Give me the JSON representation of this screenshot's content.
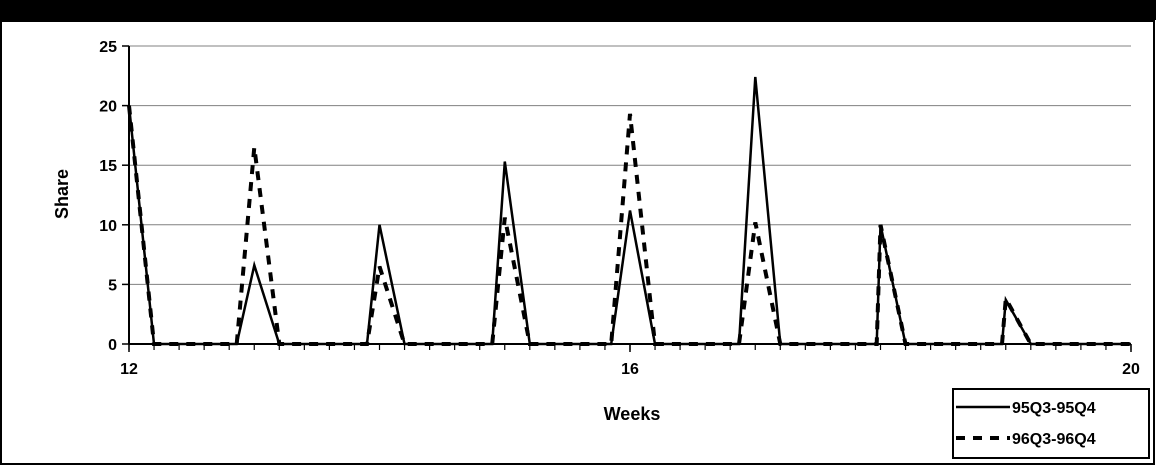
{
  "chart_data": {
    "type": "line",
    "title": "",
    "xlabel": "Weeks",
    "ylabel": "Share",
    "xlim": [
      12,
      20
    ],
    "ylim": [
      0,
      25
    ],
    "x_ticks": [
      12,
      16,
      20
    ],
    "y_ticks": [
      0,
      5,
      10,
      15,
      20,
      25
    ],
    "grid": "horizontal",
    "legend_position": "bottom-right",
    "series": [
      {
        "name": "95Q3-95Q4",
        "style": "solid",
        "x": [
          12,
          12.2,
          12.4,
          12.6,
          12.8,
          12.86,
          13.0,
          13.2,
          13.3,
          13.4,
          13.6,
          13.8,
          13.9,
          14.0,
          14.2,
          14.4,
          14.6,
          14.8,
          14.9,
          15.0,
          15.2,
          15.4,
          15.6,
          15.8,
          15.85,
          16.0,
          16.2,
          16.4,
          16.6,
          16.8,
          16.87,
          17.0,
          17.2,
          17.4,
          17.6,
          17.8,
          17.97,
          18.0,
          18.2,
          18.4,
          18.6,
          18.8,
          18.97,
          19.0,
          19.2,
          19.4,
          19.6,
          19.8,
          20.0
        ],
        "values": [
          20,
          0,
          0,
          0,
          0,
          0,
          6.6,
          0,
          0,
          0,
          0,
          0,
          0,
          10,
          0,
          0,
          0,
          0,
          0,
          15.3,
          0,
          0,
          0,
          0,
          0,
          11.2,
          0,
          0,
          0,
          0,
          0,
          22.4,
          0,
          0,
          0,
          0,
          0,
          10,
          0,
          0,
          0,
          0,
          0,
          3.7,
          0,
          0,
          0,
          0,
          0
        ]
      },
      {
        "name": "96Q3-96Q4",
        "style": "dashed",
        "x": [
          12,
          12.2,
          12.4,
          12.6,
          12.8,
          12.86,
          13.0,
          13.2,
          13.3,
          13.4,
          13.6,
          13.8,
          13.9,
          14.0,
          14.2,
          14.4,
          14.6,
          14.8,
          14.9,
          15.0,
          15.2,
          15.4,
          15.6,
          15.8,
          15.85,
          16.0,
          16.2,
          16.4,
          16.6,
          16.8,
          16.87,
          17.0,
          17.2,
          17.4,
          17.6,
          17.8,
          17.97,
          18.0,
          18.2,
          18.4,
          18.6,
          18.8,
          18.97,
          19.0,
          19.2,
          19.4,
          19.6,
          19.8,
          20.0
        ],
        "values": [
          20,
          0,
          0,
          0,
          0,
          0,
          16.5,
          0,
          0,
          0,
          0,
          0,
          0,
          6.5,
          0,
          0,
          0,
          0,
          0,
          10.6,
          0,
          0,
          0,
          0,
          0,
          19.3,
          0,
          0,
          0,
          0,
          0,
          10.2,
          0,
          0,
          0,
          0,
          0,
          10,
          0,
          0,
          0,
          0,
          0,
          3.8,
          0,
          0,
          0,
          0,
          0
        ]
      }
    ]
  }
}
